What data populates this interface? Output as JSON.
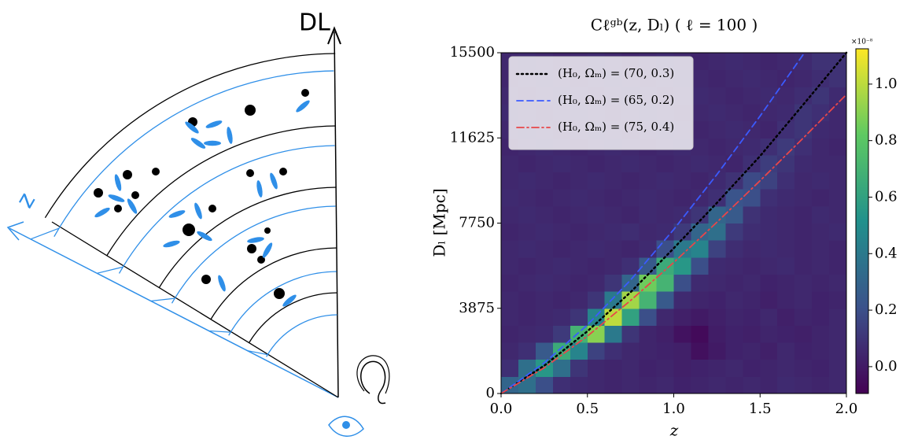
{
  "diagram": {
    "vertical_axis_label": "DL",
    "slanted_axis_label": "z"
  },
  "chart_data": {
    "type": "heatmap",
    "title": "Cℓᵍᵇ(z, Dₗ) ( ℓ = 100 )",
    "xlabel": "z",
    "ylabel": "Dₗ [Mpc]",
    "colormap": "viridis",
    "xlim": [
      0,
      2
    ],
    "ylim": [
      0,
      15500
    ],
    "xticks": [
      {
        "value": 0,
        "label": "0.0"
      },
      0.5,
      {
        "value": 1,
        "label": "1.0"
      },
      1.5,
      {
        "value": 2,
        "label": "2.0"
      }
    ],
    "yticks": [
      0,
      3875,
      7750,
      11625,
      15500
    ],
    "clim": [
      -0.095,
      1.125
    ],
    "cticks": [
      {
        "value": 0,
        "label": "0.0"
      },
      0.2,
      0.4,
      0.6,
      0.8,
      {
        "value": 1,
        "label": "1.0"
      }
    ],
    "colorbar_offset_label": "×10⁻⁸",
    "legend": "upper left",
    "x": [
      0.05,
      0.15,
      0.25,
      0.35,
      0.45,
      0.55,
      0.65,
      0.75,
      0.85,
      0.95,
      1.05,
      1.15,
      1.25,
      1.35,
      1.45,
      1.55,
      1.65,
      1.75,
      1.85,
      1.95
    ],
    "y": [
      387.5,
      1162.5,
      1937.5,
      2712.5,
      3487.5,
      4262.5,
      5037.5,
      5812.5,
      6587.5,
      7362.5,
      8137.5,
      8912.5,
      9687.5,
      10462.5,
      11237.5,
      12012.5,
      12787.5,
      13562.5,
      14337.5,
      15112.5
    ],
    "values": [
      [
        0.3,
        0.35,
        0.2,
        0.08,
        0.06,
        0.05,
        0.04,
        0.05,
        0.04,
        0.05,
        0.03,
        0.04,
        0.05,
        0.04,
        0.05,
        0.04,
        0.06,
        0.05,
        0.04,
        0.05
      ],
      [
        0.08,
        0.35,
        0.55,
        0.35,
        0.1,
        0.05,
        0.04,
        0.05,
        0.03,
        0.04,
        0.02,
        0.03,
        0.04,
        0.05,
        0.03,
        0.04,
        0.05,
        0.04,
        0.03,
        0.05
      ],
      [
        0.05,
        0.08,
        0.25,
        0.65,
        0.45,
        0.15,
        0.08,
        0.05,
        0.04,
        0.03,
        0.02,
        -0.04,
        0,
        0.03,
        0.04,
        0.02,
        0.05,
        0.03,
        0.04,
        0.05
      ],
      [
        0.04,
        0.05,
        0.06,
        0.12,
        0.7,
        0.9,
        0.4,
        0.1,
        0.04,
        0.02,
        -0.03,
        -0.06,
        0.01,
        0.03,
        0.02,
        0.04,
        0.03,
        0.02,
        0.04,
        0.05
      ],
      [
        0.05,
        0.04,
        0.05,
        0.06,
        0.1,
        0.45,
        1,
        0.6,
        0.2,
        0.05,
        0.02,
        0,
        0.02,
        0.04,
        0.03,
        0.05,
        0.02,
        0.04,
        0.03,
        0.05
      ],
      [
        0.05,
        0.04,
        0.05,
        0.04,
        0.05,
        0.1,
        0.4,
        0.95,
        0.7,
        0.25,
        0.06,
        0.04,
        0.03,
        0.05,
        0.04,
        0.02,
        0.04,
        0.05,
        0.03,
        0.04
      ],
      [
        0.04,
        0.05,
        0.06,
        0.05,
        0.04,
        0.05,
        0.1,
        0.3,
        0.85,
        0.7,
        0.2,
        0.06,
        0.05,
        0.04,
        0.05,
        0.03,
        0.04,
        0.05,
        0.04,
        0.05
      ],
      [
        0.05,
        0.04,
        0.05,
        0.06,
        0.05,
        0.04,
        0.05,
        0.08,
        0.25,
        0.65,
        0.55,
        0.2,
        0.06,
        0.05,
        0.04,
        0.05,
        0.06,
        0.04,
        0.05,
        0.04
      ],
      [
        0.05,
        0.06,
        0.05,
        0.04,
        0.05,
        0.06,
        0.05,
        0.04,
        0.06,
        0.2,
        0.4,
        0.45,
        0.15,
        0.07,
        0.05,
        0.06,
        0.05,
        0.04,
        0.05,
        0.04
      ],
      [
        0.04,
        0.05,
        0.06,
        0.05,
        0.04,
        0.05,
        0.06,
        0.07,
        0.05,
        0.06,
        0.12,
        0.3,
        0.35,
        0.12,
        0.07,
        0.06,
        0.05,
        0.04,
        0.05,
        0.06
      ],
      [
        0.05,
        0.06,
        0.05,
        0.04,
        0.05,
        0.06,
        0.05,
        0.04,
        0.06,
        0.05,
        0.06,
        0.1,
        0.3,
        0.25,
        0.09,
        0.06,
        0.05,
        0.04,
        0.06,
        0.05
      ],
      [
        0.06,
        0.05,
        0.04,
        0.05,
        0.06,
        0.05,
        0.04,
        0.05,
        0.06,
        0.05,
        0.04,
        0.05,
        0.08,
        0.22,
        0.2,
        0.08,
        0.06,
        0.05,
        0.04,
        0.05
      ],
      [
        0.05,
        0.06,
        0.05,
        0.04,
        0.05,
        0.06,
        0.05,
        0.04,
        0.05,
        0.06,
        0.05,
        0.04,
        0.06,
        0.09,
        0.18,
        0.15,
        0.08,
        0.05,
        0.06,
        0.05
      ],
      [
        0.05,
        0.04,
        0.05,
        0.06,
        0.05,
        0.04,
        0.05,
        0.06,
        0.05,
        0.04,
        0.05,
        0.06,
        0.05,
        0.04,
        0.08,
        0.13,
        0.1,
        0.06,
        0.05,
        0.05
      ],
      [
        0.04,
        0.05,
        0.06,
        0.05,
        0.04,
        0.05,
        0.06,
        0.05,
        0.04,
        0.05,
        0.06,
        0.05,
        0.04,
        0.05,
        0.06,
        0.08,
        0.12,
        0.08,
        0.05,
        0.04
      ],
      [
        0.05,
        0.06,
        0.05,
        0.04,
        0.05,
        0.06,
        0.05,
        0.04,
        0.05,
        0.06,
        0.05,
        0.04,
        0.05,
        0.06,
        0.05,
        0.04,
        0.08,
        0.1,
        0.06,
        0.05
      ],
      [
        0.06,
        0.05,
        0.04,
        0.05,
        0.06,
        0.05,
        0.04,
        0.05,
        0.06,
        0.05,
        0.04,
        0.05,
        0.06,
        0.05,
        0.04,
        0.05,
        0.06,
        0.1,
        0.08,
        0.05
      ],
      [
        0.05,
        0.04,
        0.05,
        0.06,
        0.05,
        0.04,
        0.05,
        0.06,
        0.05,
        0.04,
        0.05,
        0.06,
        0.05,
        0.04,
        0.05,
        0.06,
        0.05,
        0.07,
        0.1,
        0.06
      ],
      [
        0.04,
        0.05,
        0.06,
        0.05,
        0.04,
        0.05,
        0.06,
        0.05,
        0.04,
        0.05,
        0.06,
        0.05,
        0.04,
        0.05,
        0.06,
        0.05,
        0.04,
        0.05,
        0.07,
        0.09
      ],
      [
        0.05,
        0.06,
        0.05,
        0.04,
        0.05,
        0.06,
        0.05,
        0.04,
        0.05,
        0.06,
        0.05,
        0.04,
        0.05,
        0.06,
        0.05,
        0.04,
        0.05,
        0.06,
        0.09,
        0.09
      ]
    ],
    "series": [
      {
        "name": "(H₀, Ωₘ) = (70, 0.3)",
        "color": "#000000",
        "line_style": "dotted",
        "x": [
          0,
          0.25,
          0.5,
          0.75,
          1,
          1.25,
          1.5,
          1.75,
          2
        ],
        "values": [
          0,
          1266,
          2832,
          4607,
          6607,
          8670,
          10800,
          13140,
          15500
        ]
      },
      {
        "name": "(H₀, Ωₘ) = (65, 0.2)",
        "color": "#3b5bff",
        "line_style": "dashed",
        "x": [
          0,
          0.25,
          0.5,
          0.75,
          1,
          1.25,
          1.5,
          1.75
        ],
        "values": [
          0,
          1390,
          3120,
          5160,
          7460,
          9960,
          12620,
          15420
        ]
      },
      {
        "name": "(H₀, Ωₘ) = (75, 0.4)",
        "color": "#e8464a",
        "line_style": "dashdot",
        "x": [
          0,
          0.25,
          0.5,
          0.75,
          1,
          1.25,
          1.5,
          1.75,
          2
        ],
        "values": [
          0,
          1170,
          2610,
          4230,
          5960,
          7790,
          9680,
          11620,
          13600
        ]
      }
    ]
  }
}
